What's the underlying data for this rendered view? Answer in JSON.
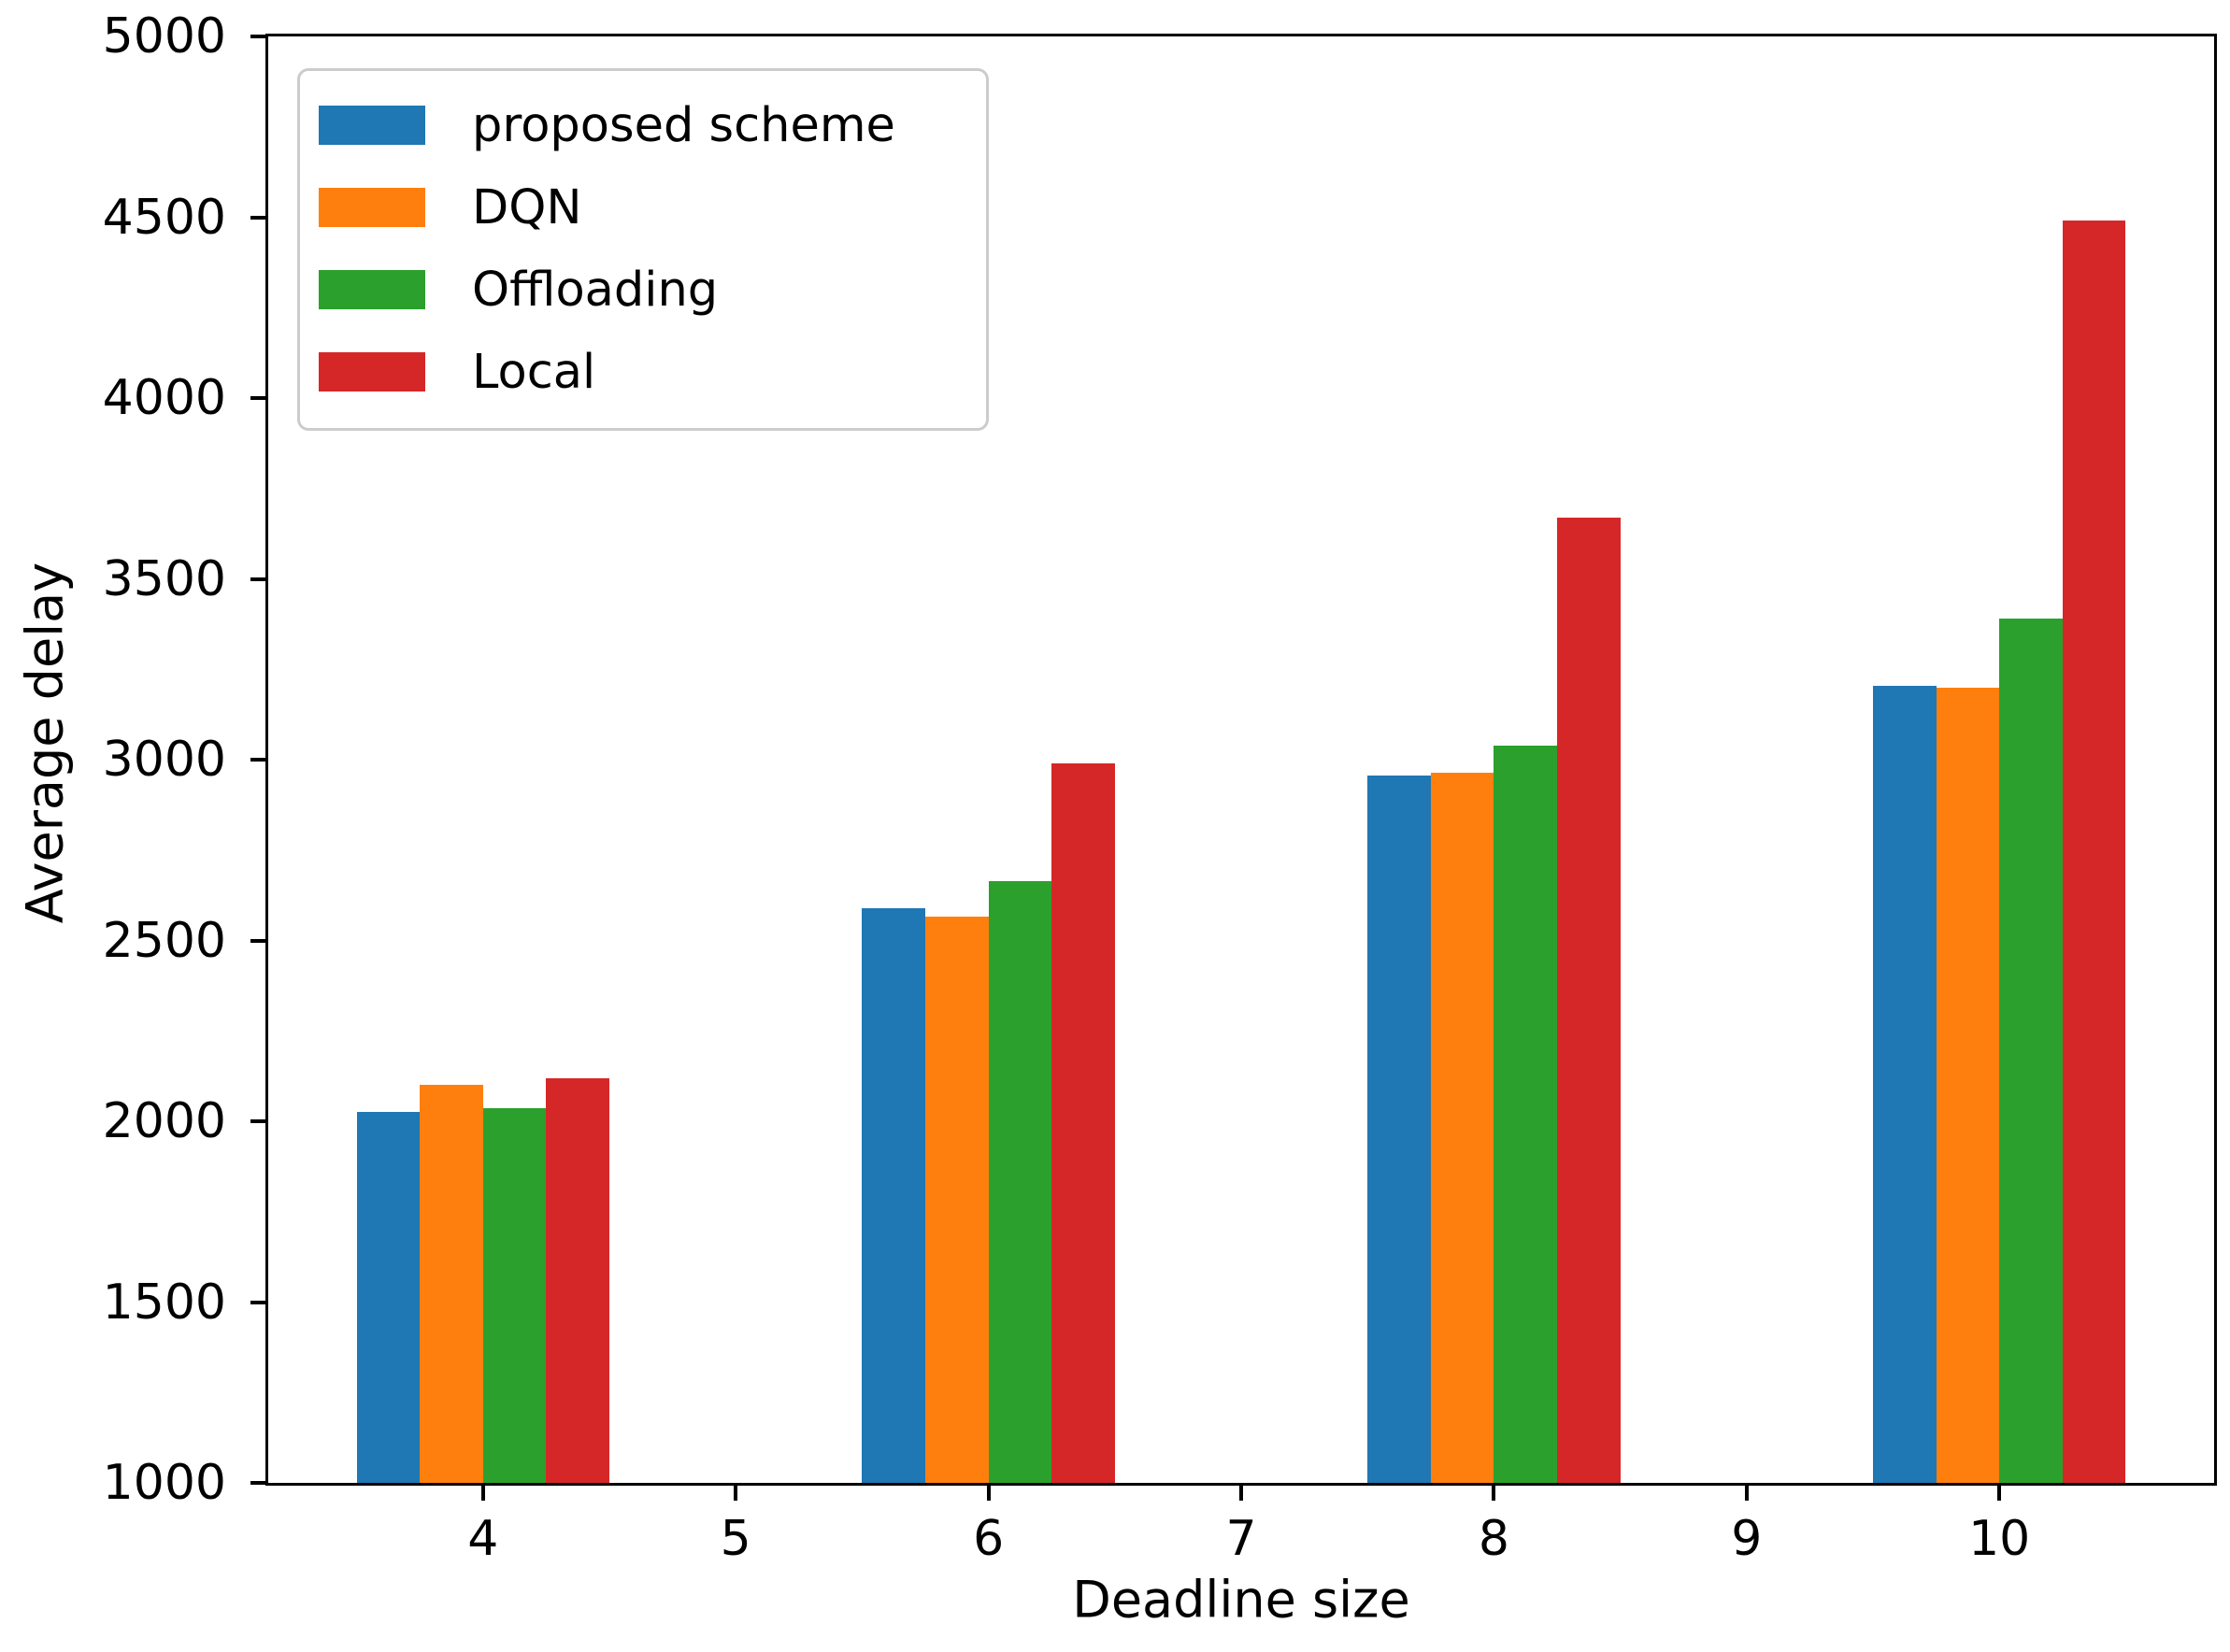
{
  "chart_data": {
    "type": "bar",
    "title": "",
    "xlabel": "Deadline size",
    "ylabel": "Average delay",
    "categories": [
      4,
      6,
      8,
      10
    ],
    "series": [
      {
        "name": "proposed scheme",
        "color": "#1f77b4",
        "values": [
          2025,
          2590,
          2955,
          3205
        ]
      },
      {
        "name": "DQN",
        "color": "#ff7f0e",
        "values": [
          2100,
          2565,
          2965,
          3200
        ]
      },
      {
        "name": "Offloading",
        "color": "#2ca02c",
        "values": [
          2035,
          2665,
          3040,
          3390
        ]
      },
      {
        "name": "Local",
        "color": "#d62728",
        "values": [
          2120,
          2990,
          3670,
          4490
        ]
      }
    ],
    "bar_width": 0.25,
    "xlim": [
      3.15,
      10.85
    ],
    "ylim": [
      1000,
      5000
    ],
    "x_ticks": [
      4,
      5,
      6,
      7,
      8,
      9,
      10
    ],
    "y_ticks": [
      1000,
      1500,
      2000,
      2500,
      3000,
      3500,
      4000,
      4500,
      5000
    ],
    "grid": false,
    "legend_position": "upper-left",
    "axis_color": "#000000",
    "legend_border_color": "#cccccc"
  }
}
